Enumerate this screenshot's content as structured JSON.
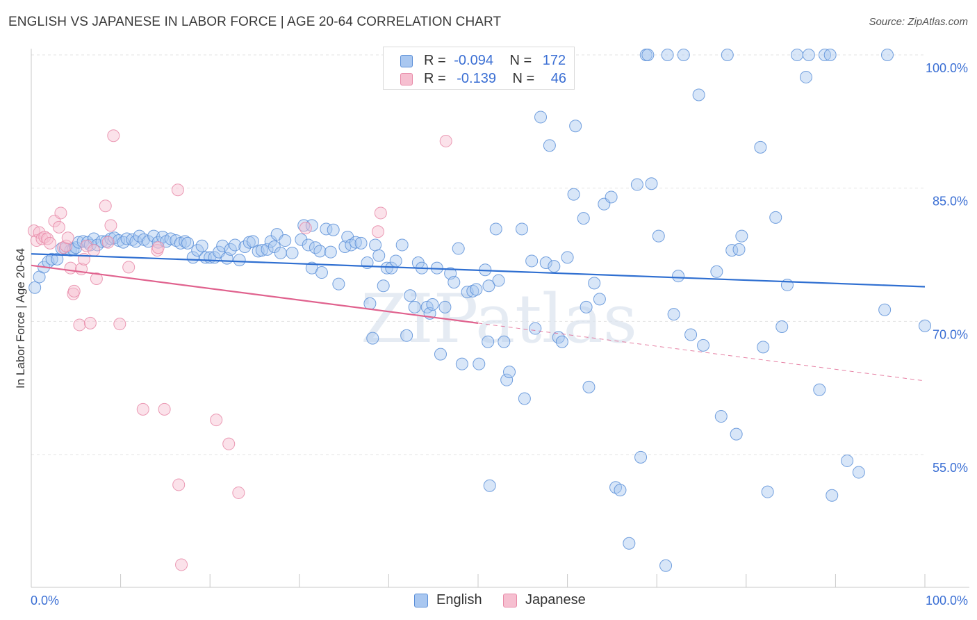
{
  "title": "ENGLISH VS JAPANESE IN LABOR FORCE | AGE 20-64 CORRELATION CHART",
  "source": "Source: ZipAtlas.com",
  "watermark": "ZIPatlas",
  "colors": {
    "english_fill": "#a9c7f0",
    "english_stroke": "#5b8fd8",
    "english_line": "#2f6fd1",
    "japanese_fill": "#f6bfd0",
    "japanese_stroke": "#e88aa8",
    "japanese_line": "#e0628e",
    "tick_label": "#3b6fd4"
  },
  "legend_top": {
    "english": {
      "r_label": "R =",
      "r_value": "-0.094",
      "n_label": "N =",
      "n_value": "172"
    },
    "japanese": {
      "r_label": "R =",
      "r_value": "-0.139",
      "n_label": "N =",
      "n_value": "46"
    }
  },
  "legend_bottom": {
    "english": "English",
    "japanese": "Japanese"
  },
  "chart_data": {
    "type": "scatter",
    "xlabel": "",
    "ylabel": "In Labor Force | Age 20-64",
    "xlim": [
      0,
      100
    ],
    "ylim": [
      40,
      102
    ],
    "x_tick_labels": [
      {
        "value": 0,
        "label": "0.0%"
      },
      {
        "value": 100,
        "label": "100.0%"
      }
    ],
    "y_tick_labels": [
      {
        "value": 100,
        "label": "100.0%"
      },
      {
        "value": 85,
        "label": "85.0%"
      },
      {
        "value": 70,
        "label": "70.0%"
      },
      {
        "value": 55,
        "label": "55.0%"
      }
    ],
    "grid": true,
    "legend": "top-center",
    "series": [
      {
        "name": "English",
        "r": -0.094,
        "n": 172,
        "trend": {
          "x": [
            0,
            100
          ],
          "y": [
            77.6,
            73.9
          ],
          "style": "solid"
        },
        "points": [
          [
            0.4,
            73.8
          ],
          [
            0.9,
            75.0
          ],
          [
            1.4,
            76.1
          ],
          [
            1.9,
            76.7
          ],
          [
            2.3,
            77.0
          ],
          [
            2.9,
            77.0
          ],
          [
            3.4,
            78.2
          ],
          [
            3.8,
            78.2
          ],
          [
            4.4,
            78.0
          ],
          [
            4.7,
            78.1
          ],
          [
            5.0,
            78.3
          ],
          [
            5.3,
            78.9
          ],
          [
            5.8,
            79.0
          ],
          [
            6.3,
            78.9
          ],
          [
            6.6,
            78.6
          ],
          [
            7.0,
            79.3
          ],
          [
            7.4,
            78.6
          ],
          [
            7.9,
            79.0
          ],
          [
            8.4,
            79.0
          ],
          [
            8.9,
            79.3
          ],
          [
            9.3,
            79.4
          ],
          [
            9.8,
            79.1
          ],
          [
            10.3,
            78.9
          ],
          [
            10.7,
            79.3
          ],
          [
            11.3,
            79.2
          ],
          [
            11.7,
            79.0
          ],
          [
            12.1,
            79.6
          ],
          [
            12.6,
            79.2
          ],
          [
            13.1,
            79.0
          ],
          [
            13.7,
            79.6
          ],
          [
            14.2,
            78.9
          ],
          [
            14.7,
            79.5
          ],
          [
            15.1,
            79.0
          ],
          [
            15.6,
            79.3
          ],
          [
            16.2,
            79.1
          ],
          [
            16.7,
            78.8
          ],
          [
            17.2,
            79.0
          ],
          [
            17.5,
            78.8
          ],
          [
            18.1,
            77.2
          ],
          [
            18.6,
            78.0
          ],
          [
            19.1,
            78.5
          ],
          [
            19.5,
            77.2
          ],
          [
            20.0,
            77.2
          ],
          [
            20.5,
            77.2
          ],
          [
            21.0,
            77.8
          ],
          [
            21.4,
            78.5
          ],
          [
            21.9,
            77.1
          ],
          [
            22.3,
            78.1
          ],
          [
            22.8,
            78.6
          ],
          [
            23.3,
            76.9
          ],
          [
            23.9,
            78.4
          ],
          [
            24.4,
            78.9
          ],
          [
            24.8,
            79.0
          ],
          [
            25.4,
            77.9
          ],
          [
            25.8,
            78.0
          ],
          [
            26.4,
            78.1
          ],
          [
            26.8,
            79.0
          ],
          [
            27.2,
            78.4
          ],
          [
            27.5,
            79.8
          ],
          [
            27.9,
            77.7
          ],
          [
            28.4,
            79.1
          ],
          [
            29.2,
            77.7
          ],
          [
            30.2,
            79.2
          ],
          [
            30.5,
            80.8
          ],
          [
            31.0,
            78.6
          ],
          [
            31.4,
            80.8
          ],
          [
            31.8,
            78.3
          ],
          [
            32.3,
            77.9
          ],
          [
            31.4,
            76.0
          ],
          [
            32.5,
            75.5
          ],
          [
            33.0,
            80.4
          ],
          [
            33.5,
            77.8
          ],
          [
            33.8,
            80.3
          ],
          [
            34.4,
            74.2
          ],
          [
            35.1,
            78.4
          ],
          [
            35.4,
            79.5
          ],
          [
            35.8,
            78.6
          ],
          [
            36.3,
            78.9
          ],
          [
            36.9,
            78.8
          ],
          [
            37.6,
            76.6
          ],
          [
            37.9,
            72.0
          ],
          [
            38.2,
            68.1
          ],
          [
            38.5,
            78.6
          ],
          [
            38.9,
            77.4
          ],
          [
            39.4,
            74.0
          ],
          [
            39.8,
            76.0
          ],
          [
            40.3,
            76.0
          ],
          [
            40.8,
            76.8
          ],
          [
            41.5,
            78.6
          ],
          [
            42.0,
            68.4
          ],
          [
            42.4,
            72.9
          ],
          [
            42.9,
            71.6
          ],
          [
            43.3,
            76.6
          ],
          [
            43.7,
            76.0
          ],
          [
            44.3,
            71.6
          ],
          [
            44.6,
            70.9
          ],
          [
            44.9,
            71.9
          ],
          [
            45.4,
            76.0
          ],
          [
            45.8,
            66.3
          ],
          [
            46.3,
            71.6
          ],
          [
            46.9,
            75.4
          ],
          [
            47.3,
            74.4
          ],
          [
            47.8,
            78.2
          ],
          [
            48.2,
            65.2
          ],
          [
            48.8,
            73.3
          ],
          [
            49.4,
            73.4
          ],
          [
            49.8,
            73.6
          ],
          [
            50.1,
            65.2
          ],
          [
            50.8,
            75.8
          ],
          [
            51.1,
            67.7
          ],
          [
            51.2,
            74.0
          ],
          [
            51.3,
            51.5
          ],
          [
            52.0,
            80.4
          ],
          [
            52.3,
            74.6
          ],
          [
            52.9,
            67.7
          ],
          [
            53.2,
            63.4
          ],
          [
            53.5,
            64.3
          ],
          [
            54.9,
            80.4
          ],
          [
            55.2,
            61.3
          ],
          [
            56.0,
            76.8
          ],
          [
            56.4,
            69.2
          ],
          [
            57.0,
            93.0
          ],
          [
            57.6,
            76.6
          ],
          [
            58.0,
            89.8
          ],
          [
            58.5,
            76.2
          ],
          [
            59.0,
            68.2
          ],
          [
            59.4,
            67.7
          ],
          [
            60.0,
            77.2
          ],
          [
            60.7,
            84.3
          ],
          [
            60.9,
            92.0
          ],
          [
            61.8,
            81.6
          ],
          [
            62.1,
            71.6
          ],
          [
            62.4,
            62.6
          ],
          [
            63.0,
            74.3
          ],
          [
            63.6,
            72.5
          ],
          [
            64.1,
            83.2
          ],
          [
            64.9,
            84.0
          ],
          [
            65.4,
            51.3
          ],
          [
            65.9,
            51.0
          ],
          [
            66.9,
            45.0
          ],
          [
            67.8,
            85.4
          ],
          [
            68.2,
            54.7
          ],
          [
            68.8,
            100.0
          ],
          [
            69.0,
            100.0
          ],
          [
            69.4,
            85.5
          ],
          [
            70.2,
            79.6
          ],
          [
            71.0,
            42.5
          ],
          [
            71.2,
            100.0
          ],
          [
            71.9,
            70.8
          ],
          [
            72.4,
            75.1
          ],
          [
            73.0,
            100.0
          ],
          [
            73.8,
            68.5
          ],
          [
            74.7,
            95.5
          ],
          [
            75.2,
            67.3
          ],
          [
            76.7,
            75.6
          ],
          [
            77.2,
            59.3
          ],
          [
            77.9,
            100.0
          ],
          [
            78.4,
            78.0
          ],
          [
            78.9,
            57.3
          ],
          [
            79.2,
            78.1
          ],
          [
            79.5,
            79.6
          ],
          [
            81.6,
            89.6
          ],
          [
            81.9,
            67.1
          ],
          [
            82.4,
            50.8
          ],
          [
            83.3,
            81.7
          ],
          [
            84.0,
            69.4
          ],
          [
            84.6,
            74.1
          ],
          [
            85.7,
            100.0
          ],
          [
            86.7,
            97.5
          ],
          [
            87.0,
            100.0
          ],
          [
            88.2,
            62.3
          ],
          [
            88.8,
            100.0
          ],
          [
            89.4,
            100.0
          ],
          [
            89.6,
            50.4
          ],
          [
            91.3,
            54.3
          ],
          [
            92.6,
            53.0
          ],
          [
            95.5,
            71.3
          ],
          [
            95.8,
            100.0
          ],
          [
            100.0,
            69.5
          ]
        ]
      },
      {
        "name": "Japanese",
        "r": -0.139,
        "n": 46,
        "trend": {
          "x": [
            0,
            50
          ],
          "y": [
            76.3,
            69.8
          ],
          "style": "solid"
        },
        "trend_extension": {
          "x": [
            50,
            100
          ],
          "y": [
            69.8,
            63.3
          ],
          "style": "dashed"
        },
        "points": [
          [
            0.3,
            80.2
          ],
          [
            0.6,
            79.1
          ],
          [
            0.9,
            80.0
          ],
          [
            1.2,
            79.3
          ],
          [
            1.5,
            79.5
          ],
          [
            1.8,
            79.3
          ],
          [
            2.1,
            78.8
          ],
          [
            2.6,
            81.3
          ],
          [
            3.1,
            80.6
          ],
          [
            3.3,
            82.2
          ],
          [
            3.6,
            78.3
          ],
          [
            3.9,
            78.5
          ],
          [
            4.1,
            79.4
          ],
          [
            4.4,
            76.0
          ],
          [
            4.7,
            73.1
          ],
          [
            4.8,
            73.4
          ],
          [
            5.4,
            69.6
          ],
          [
            5.6,
            75.9
          ],
          [
            5.9,
            77.0
          ],
          [
            6.2,
            78.5
          ],
          [
            6.6,
            69.8
          ],
          [
            7.0,
            78.0
          ],
          [
            7.3,
            74.8
          ],
          [
            8.3,
            83.0
          ],
          [
            8.6,
            78.9
          ],
          [
            8.9,
            80.8
          ],
          [
            9.2,
            90.9
          ],
          [
            9.9,
            69.7
          ],
          [
            10.9,
            76.1
          ],
          [
            12.5,
            60.1
          ],
          [
            14.1,
            78.0
          ],
          [
            14.2,
            78.3
          ],
          [
            14.9,
            60.1
          ],
          [
            16.4,
            84.8
          ],
          [
            16.5,
            51.6
          ],
          [
            16.8,
            42.6
          ],
          [
            20.7,
            58.9
          ],
          [
            22.1,
            56.2
          ],
          [
            23.2,
            50.7
          ],
          [
            30.7,
            80.5
          ],
          [
            38.8,
            80.1
          ],
          [
            39.1,
            82.2
          ],
          [
            46.4,
            90.3
          ]
        ]
      }
    ]
  }
}
